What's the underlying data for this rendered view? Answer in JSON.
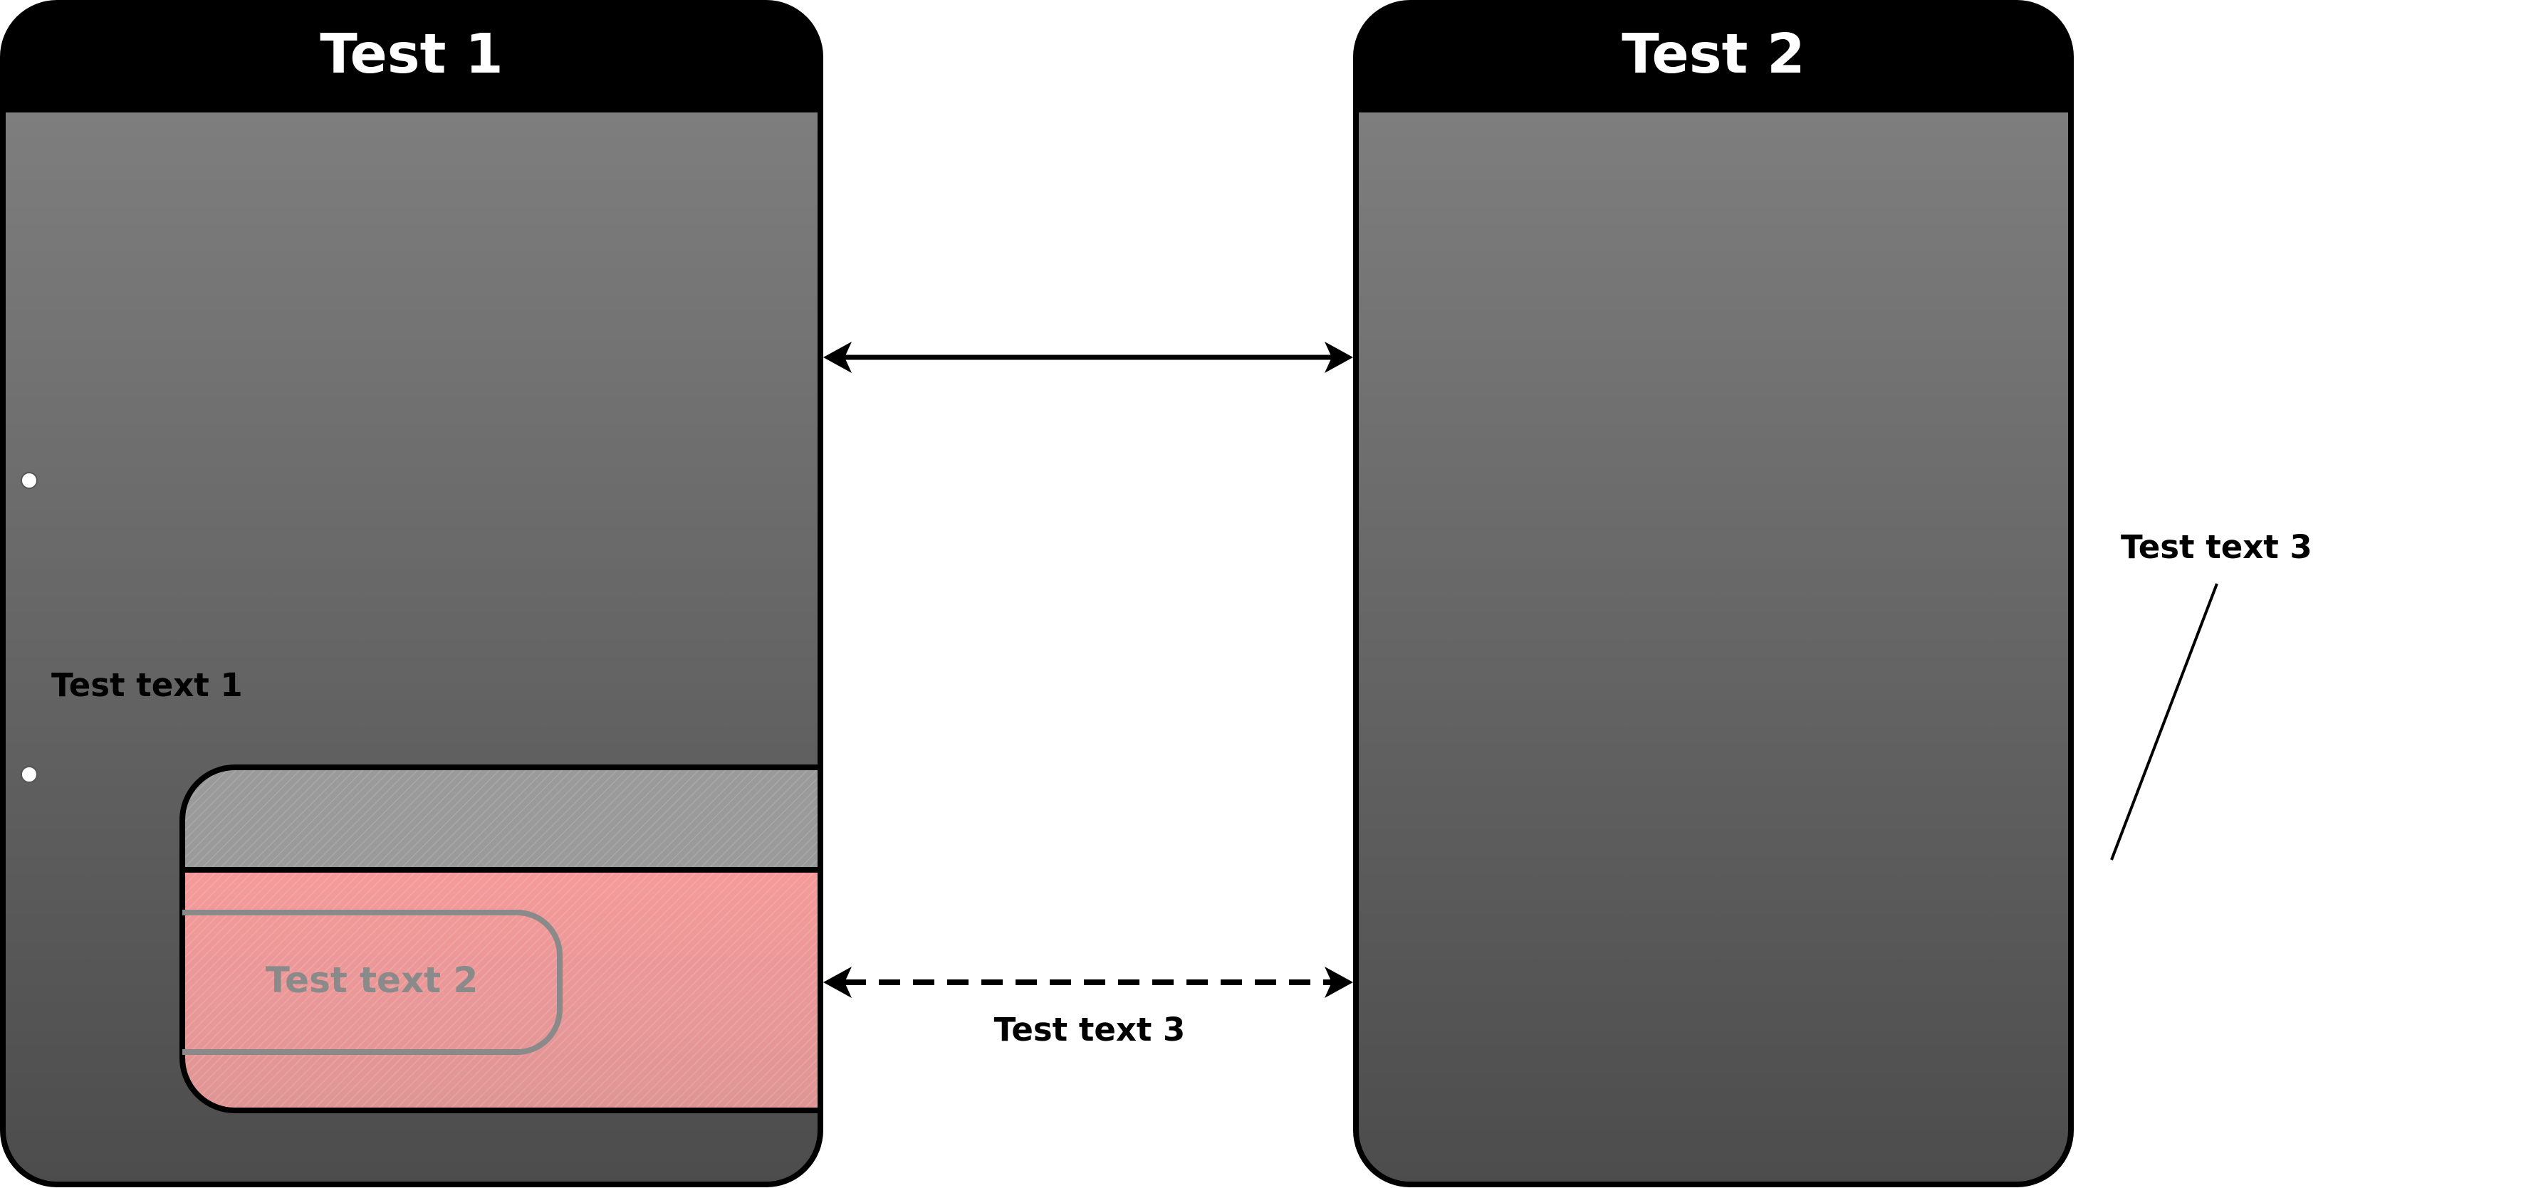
{
  "panels": {
    "left": {
      "title": "Test 1"
    },
    "right": {
      "title": "Test 2"
    }
  },
  "labels": {
    "left_text": "Test text 1",
    "inner_text": "Test text 2",
    "bottom_arrow_text": "Test text 3",
    "side_text": "Test text 3"
  },
  "colors": {
    "header": "#000000",
    "panel_gradient_top": "#838383",
    "panel_gradient_bottom": "#4c4c4c",
    "subpanel_header": "#9a9a9a",
    "subpanel_body": "#f59a9a",
    "inner_text": "#8a8a8a"
  },
  "connectors": {
    "top": {
      "style": "solid",
      "arrows": "both"
    },
    "bottom": {
      "style": "dashed",
      "arrows": "both"
    }
  }
}
